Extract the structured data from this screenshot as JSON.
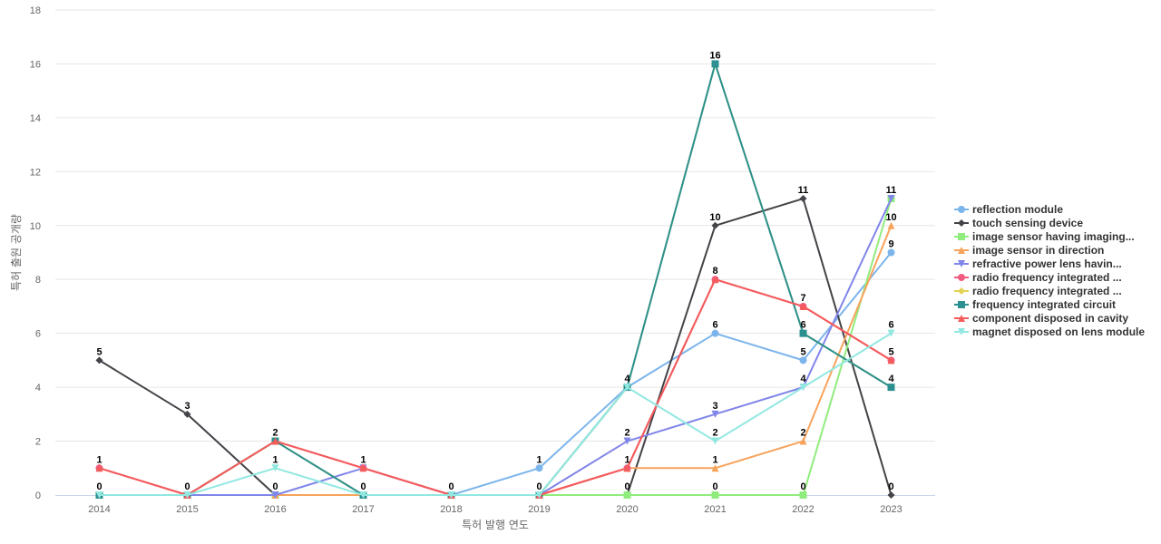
{
  "chart_data": {
    "type": "line",
    "title": "",
    "xlabel": "특허 발행 연도",
    "ylabel": "특허 출원 공개량",
    "ylim": [
      0,
      18
    ],
    "yticks": [
      0,
      2,
      4,
      6,
      8,
      10,
      12,
      14,
      16,
      18
    ],
    "grid": true,
    "legend_position": "right",
    "categories": [
      "2014",
      "2015",
      "2016",
      "2017",
      "2018",
      "2019",
      "2020",
      "2021",
      "2022",
      "2023"
    ],
    "series": [
      {
        "name": "reflection module",
        "color": "#7cb5ec",
        "marker": "circle",
        "values": [
          0,
          0,
          0,
          0,
          0,
          1,
          4,
          6,
          5,
          9
        ]
      },
      {
        "name": "touch sensing device",
        "color": "#434348",
        "marker": "diamond",
        "values": [
          5,
          3,
          0,
          0,
          0,
          0,
          0,
          10,
          11,
          0
        ]
      },
      {
        "name": "image sensor having imaging...",
        "color": "#90ed7d",
        "marker": "square",
        "values": [
          0,
          0,
          0,
          0,
          0,
          0,
          0,
          0,
          0,
          11
        ]
      },
      {
        "name": "image sensor in direction",
        "color": "#f7a35c",
        "marker": "triangle",
        "values": [
          0,
          0,
          0,
          0,
          0,
          0,
          1,
          1,
          2,
          10
        ]
      },
      {
        "name": "refractive power lens havin...",
        "color": "#8085e9",
        "marker": "triangle-down",
        "values": [
          0,
          0,
          0,
          1,
          0,
          0,
          2,
          3,
          4,
          11
        ]
      },
      {
        "name": "radio frequency integrated ...",
        "color": "#f15c80",
        "marker": "circle",
        "values": [
          1,
          0,
          2,
          1,
          0,
          0,
          1,
          8,
          7,
          5
        ]
      },
      {
        "name": "radio frequency integrated ...",
        "color": "#e4d354",
        "marker": "diamond",
        "values": [
          0,
          0,
          2,
          0,
          0,
          0,
          4,
          16,
          6,
          4
        ]
      },
      {
        "name": "frequency integrated circuit",
        "color": "#2b908f",
        "marker": "square",
        "values": [
          0,
          0,
          2,
          0,
          0,
          0,
          4,
          16,
          6,
          4
        ]
      },
      {
        "name": "component disposed in cavity",
        "color": "#f45b5b",
        "marker": "triangle",
        "values": [
          1,
          0,
          2,
          1,
          0,
          0,
          1,
          8,
          7,
          5
        ]
      },
      {
        "name": "magnet disposed on lens module",
        "color": "#91e8e1",
        "marker": "triangle-down",
        "values": [
          0,
          0,
          1,
          0,
          0,
          0,
          4,
          2,
          4,
          6
        ]
      }
    ],
    "data_labels": [
      {
        "x": "2014",
        "y": 5,
        "label": "5"
      },
      {
        "x": "2014",
        "y": 1,
        "label": "1"
      },
      {
        "x": "2014",
        "y": 0,
        "label": "0"
      },
      {
        "x": "2015",
        "y": 3,
        "label": "3"
      },
      {
        "x": "2015",
        "y": 0,
        "label": "0"
      },
      {
        "x": "2016",
        "y": 2,
        "label": "2"
      },
      {
        "x": "2016",
        "y": 1,
        "label": "1"
      },
      {
        "x": "2016",
        "y": 0,
        "label": "0"
      },
      {
        "x": "2017",
        "y": 1,
        "label": "1"
      },
      {
        "x": "2017",
        "y": 0,
        "label": "0"
      },
      {
        "x": "2018",
        "y": 0,
        "label": "0"
      },
      {
        "x": "2019",
        "y": 1,
        "label": "1"
      },
      {
        "x": "2019",
        "y": 0,
        "label": "0"
      },
      {
        "x": "2020",
        "y": 4,
        "label": "4"
      },
      {
        "x": "2020",
        "y": 2,
        "label": "2"
      },
      {
        "x": "2020",
        "y": 1,
        "label": "1"
      },
      {
        "x": "2020",
        "y": 0,
        "label": "0"
      },
      {
        "x": "2021",
        "y": 16,
        "label": "16"
      },
      {
        "x": "2021",
        "y": 10,
        "label": "10"
      },
      {
        "x": "2021",
        "y": 8,
        "label": "8"
      },
      {
        "x": "2021",
        "y": 6,
        "label": "6"
      },
      {
        "x": "2021",
        "y": 3,
        "label": "3"
      },
      {
        "x": "2021",
        "y": 2,
        "label": "2"
      },
      {
        "x": "2021",
        "y": 1,
        "label": "1"
      },
      {
        "x": "2021",
        "y": 0,
        "label": "0"
      },
      {
        "x": "2022",
        "y": 11,
        "label": "11"
      },
      {
        "x": "2022",
        "y": 7,
        "label": "7"
      },
      {
        "x": "2022",
        "y": 6,
        "label": "6"
      },
      {
        "x": "2022",
        "y": 5,
        "label": "5"
      },
      {
        "x": "2022",
        "y": 4,
        "label": "4"
      },
      {
        "x": "2022",
        "y": 2,
        "label": "2"
      },
      {
        "x": "2022",
        "y": 0,
        "label": "0"
      },
      {
        "x": "2023",
        "y": 11,
        "label": "11"
      },
      {
        "x": "2023",
        "y": 10,
        "label": "10"
      },
      {
        "x": "2023",
        "y": 9,
        "label": "9"
      },
      {
        "x": "2023",
        "y": 6,
        "label": "6"
      },
      {
        "x": "2023",
        "y": 5,
        "label": "5"
      },
      {
        "x": "2023",
        "y": 4,
        "label": "4"
      },
      {
        "x": "2023",
        "y": 0,
        "label": "0"
      }
    ]
  }
}
